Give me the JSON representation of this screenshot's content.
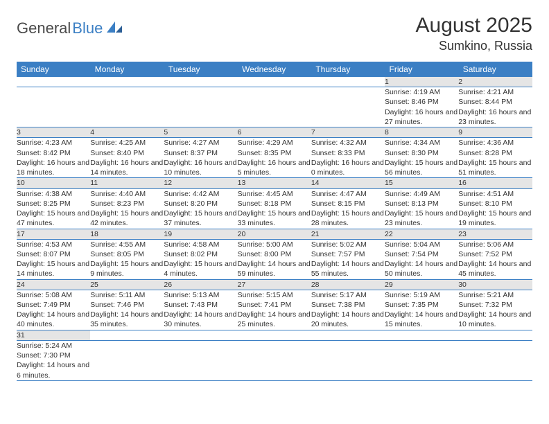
{
  "logo": {
    "part1": "General",
    "part2": "Blue"
  },
  "title": "August 2025",
  "location": "Sumkino, Russia",
  "colors": {
    "header_bg": "#3b7fc4",
    "header_text": "#ffffff",
    "daynum_bg": "#e5e5e5",
    "border": "#3b7fc4",
    "text": "#333333"
  },
  "day_headers": [
    "Sunday",
    "Monday",
    "Tuesday",
    "Wednesday",
    "Thursday",
    "Friday",
    "Saturday"
  ],
  "weeks": [
    [
      {
        "n": "",
        "d": ""
      },
      {
        "n": "",
        "d": ""
      },
      {
        "n": "",
        "d": ""
      },
      {
        "n": "",
        "d": ""
      },
      {
        "n": "",
        "d": ""
      },
      {
        "n": "1",
        "d": "Sunrise: 4:19 AM\nSunset: 8:46 PM\nDaylight: 16 hours and 27 minutes."
      },
      {
        "n": "2",
        "d": "Sunrise: 4:21 AM\nSunset: 8:44 PM\nDaylight: 16 hours and 23 minutes."
      }
    ],
    [
      {
        "n": "3",
        "d": "Sunrise: 4:23 AM\nSunset: 8:42 PM\nDaylight: 16 hours and 18 minutes."
      },
      {
        "n": "4",
        "d": "Sunrise: 4:25 AM\nSunset: 8:40 PM\nDaylight: 16 hours and 14 minutes."
      },
      {
        "n": "5",
        "d": "Sunrise: 4:27 AM\nSunset: 8:37 PM\nDaylight: 16 hours and 10 minutes."
      },
      {
        "n": "6",
        "d": "Sunrise: 4:29 AM\nSunset: 8:35 PM\nDaylight: 16 hours and 5 minutes."
      },
      {
        "n": "7",
        "d": "Sunrise: 4:32 AM\nSunset: 8:33 PM\nDaylight: 16 hours and 0 minutes."
      },
      {
        "n": "8",
        "d": "Sunrise: 4:34 AM\nSunset: 8:30 PM\nDaylight: 15 hours and 56 minutes."
      },
      {
        "n": "9",
        "d": "Sunrise: 4:36 AM\nSunset: 8:28 PM\nDaylight: 15 hours and 51 minutes."
      }
    ],
    [
      {
        "n": "10",
        "d": "Sunrise: 4:38 AM\nSunset: 8:25 PM\nDaylight: 15 hours and 47 minutes."
      },
      {
        "n": "11",
        "d": "Sunrise: 4:40 AM\nSunset: 8:23 PM\nDaylight: 15 hours and 42 minutes."
      },
      {
        "n": "12",
        "d": "Sunrise: 4:42 AM\nSunset: 8:20 PM\nDaylight: 15 hours and 37 minutes."
      },
      {
        "n": "13",
        "d": "Sunrise: 4:45 AM\nSunset: 8:18 PM\nDaylight: 15 hours and 33 minutes."
      },
      {
        "n": "14",
        "d": "Sunrise: 4:47 AM\nSunset: 8:15 PM\nDaylight: 15 hours and 28 minutes."
      },
      {
        "n": "15",
        "d": "Sunrise: 4:49 AM\nSunset: 8:13 PM\nDaylight: 15 hours and 23 minutes."
      },
      {
        "n": "16",
        "d": "Sunrise: 4:51 AM\nSunset: 8:10 PM\nDaylight: 15 hours and 19 minutes."
      }
    ],
    [
      {
        "n": "17",
        "d": "Sunrise: 4:53 AM\nSunset: 8:07 PM\nDaylight: 15 hours and 14 minutes."
      },
      {
        "n": "18",
        "d": "Sunrise: 4:55 AM\nSunset: 8:05 PM\nDaylight: 15 hours and 9 minutes."
      },
      {
        "n": "19",
        "d": "Sunrise: 4:58 AM\nSunset: 8:02 PM\nDaylight: 15 hours and 4 minutes."
      },
      {
        "n": "20",
        "d": "Sunrise: 5:00 AM\nSunset: 8:00 PM\nDaylight: 14 hours and 59 minutes."
      },
      {
        "n": "21",
        "d": "Sunrise: 5:02 AM\nSunset: 7:57 PM\nDaylight: 14 hours and 55 minutes."
      },
      {
        "n": "22",
        "d": "Sunrise: 5:04 AM\nSunset: 7:54 PM\nDaylight: 14 hours and 50 minutes."
      },
      {
        "n": "23",
        "d": "Sunrise: 5:06 AM\nSunset: 7:52 PM\nDaylight: 14 hours and 45 minutes."
      }
    ],
    [
      {
        "n": "24",
        "d": "Sunrise: 5:08 AM\nSunset: 7:49 PM\nDaylight: 14 hours and 40 minutes."
      },
      {
        "n": "25",
        "d": "Sunrise: 5:11 AM\nSunset: 7:46 PM\nDaylight: 14 hours and 35 minutes."
      },
      {
        "n": "26",
        "d": "Sunrise: 5:13 AM\nSunset: 7:43 PM\nDaylight: 14 hours and 30 minutes."
      },
      {
        "n": "27",
        "d": "Sunrise: 5:15 AM\nSunset: 7:41 PM\nDaylight: 14 hours and 25 minutes."
      },
      {
        "n": "28",
        "d": "Sunrise: 5:17 AM\nSunset: 7:38 PM\nDaylight: 14 hours and 20 minutes."
      },
      {
        "n": "29",
        "d": "Sunrise: 5:19 AM\nSunset: 7:35 PM\nDaylight: 14 hours and 15 minutes."
      },
      {
        "n": "30",
        "d": "Sunrise: 5:21 AM\nSunset: 7:32 PM\nDaylight: 14 hours and 10 minutes."
      }
    ],
    [
      {
        "n": "31",
        "d": "Sunrise: 5:24 AM\nSunset: 7:30 PM\nDaylight: 14 hours and 6 minutes."
      },
      {
        "n": "",
        "d": ""
      },
      {
        "n": "",
        "d": ""
      },
      {
        "n": "",
        "d": ""
      },
      {
        "n": "",
        "d": ""
      },
      {
        "n": "",
        "d": ""
      },
      {
        "n": "",
        "d": ""
      }
    ]
  ]
}
